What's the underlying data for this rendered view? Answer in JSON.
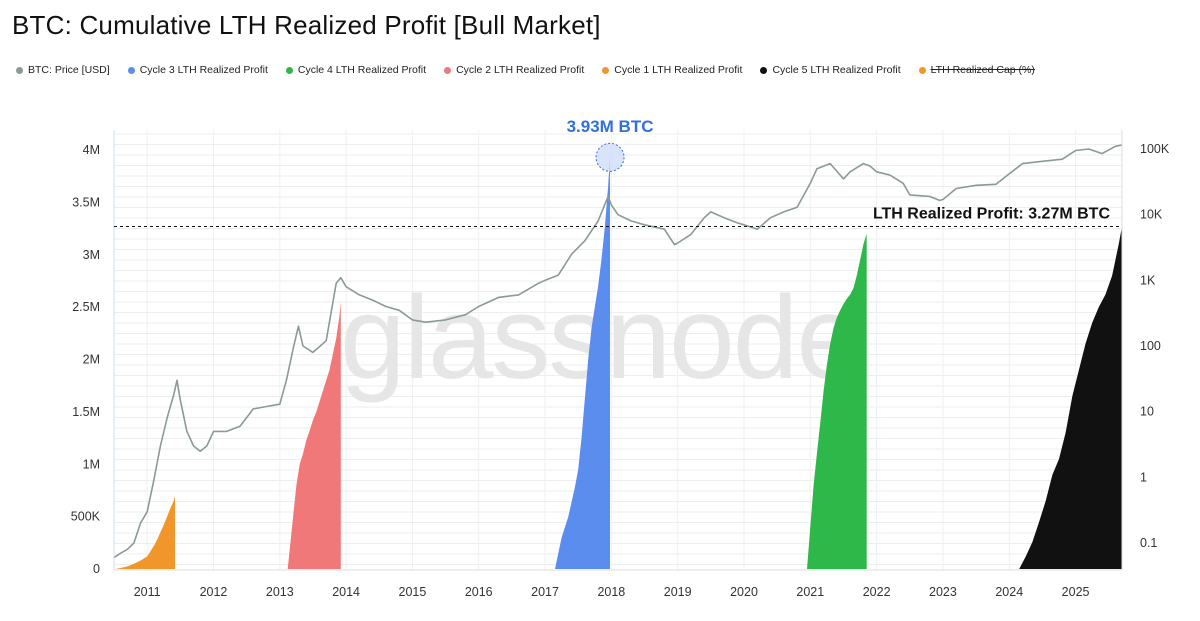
{
  "chart_data": {
    "type": "area",
    "title": "BTC: Cumulative LTH Realized Profit [Bull Market]",
    "watermark": "glassnode",
    "legend": [
      {
        "name": "BTC: Price [USD]",
        "color": "#8a9a94",
        "struck": false
      },
      {
        "name": "Cycle 3 LTH Realized Profit",
        "color": "#5b8def",
        "struck": false
      },
      {
        "name": "Cycle 4 LTH Realized Profit",
        "color": "#2eb84a",
        "struck": false
      },
      {
        "name": "Cycle 2 LTH Realized Profit",
        "color": "#f07878",
        "struck": false
      },
      {
        "name": "Cycle 1 LTH Realized Profit",
        "color": "#f0962a",
        "struck": false
      },
      {
        "name": "Cycle 5 LTH Realized Profit",
        "color": "#111111",
        "struck": false
      },
      {
        "name": "LTH Realized Cap (%)",
        "color": "#f0962a",
        "struck": true
      }
    ],
    "x_ticks": [
      "2011",
      "2012",
      "2013",
      "2014",
      "2015",
      "2016",
      "2017",
      "2018",
      "2019",
      "2020",
      "2021",
      "2022",
      "2023",
      "2024",
      "2025"
    ],
    "x_range": [
      2010.5,
      2025.7
    ],
    "y_left": {
      "ticks": [
        "0",
        "500K",
        "1M",
        "1.5M",
        "2M",
        "2.5M",
        "3M",
        "3.5M",
        "4M"
      ],
      "values": [
        0,
        500000,
        1000000,
        1500000,
        2000000,
        2500000,
        3000000,
        3500000,
        4000000
      ],
      "range": [
        0,
        4000000
      ]
    },
    "y_right": {
      "ticks": [
        "0.1",
        "1",
        "10",
        "100",
        "1K",
        "10K",
        "100K"
      ],
      "values": [
        0.1,
        1,
        10,
        100,
        1000,
        10000,
        100000
      ],
      "log": true,
      "range": [
        0.05,
        200000
      ]
    },
    "series": [
      {
        "name": "Cycle 1 LTH Realized Profit",
        "color": "#f0962a",
        "x": [
          2010.52,
          2010.6,
          2010.7,
          2010.8,
          2010.9,
          2011.0,
          2011.05,
          2011.1,
          2011.15,
          2011.2,
          2011.25,
          2011.3,
          2011.35,
          2011.4,
          2011.42
        ],
        "y": [
          0,
          10000,
          25000,
          50000,
          80000,
          120000,
          170000,
          220000,
          280000,
          350000,
          420000,
          500000,
          580000,
          650000,
          700000
        ]
      },
      {
        "name": "Cycle 2 LTH Realized Profit",
        "color": "#f07878",
        "x": [
          2013.12,
          2013.2,
          2013.25,
          2013.3,
          2013.35,
          2013.4,
          2013.45,
          2013.5,
          2013.55,
          2013.6,
          2013.65,
          2013.7,
          2013.75,
          2013.8,
          2013.85,
          2013.9,
          2013.92
        ],
        "y": [
          0,
          500000,
          800000,
          1000000,
          1100000,
          1230000,
          1320000,
          1420000,
          1500000,
          1600000,
          1700000,
          1800000,
          1900000,
          2050000,
          2200000,
          2420000,
          2550000
        ]
      },
      {
        "name": "Cycle 3 LTH Realized Profit",
        "color": "#5b8def",
        "x": [
          2017.15,
          2017.25,
          2017.35,
          2017.45,
          2017.5,
          2017.55,
          2017.6,
          2017.65,
          2017.7,
          2017.75,
          2017.8,
          2017.85,
          2017.9,
          2017.95,
          2017.98
        ],
        "y": [
          0,
          300000,
          500000,
          780000,
          950000,
          1250000,
          1620000,
          2000000,
          2300000,
          2500000,
          2700000,
          2950000,
          3250000,
          3650000,
          3930000
        ]
      },
      {
        "name": "Cycle 4 LTH Realized Profit",
        "color": "#2eb84a",
        "x": [
          2020.95,
          2021.0,
          2021.05,
          2021.1,
          2021.15,
          2021.2,
          2021.25,
          2021.3,
          2021.35,
          2021.4,
          2021.45,
          2021.5,
          2021.55,
          2021.6,
          2021.65,
          2021.7,
          2021.75,
          2021.8,
          2021.85
        ],
        "y": [
          0,
          400000,
          800000,
          1100000,
          1400000,
          1700000,
          1950000,
          2150000,
          2300000,
          2400000,
          2470000,
          2530000,
          2580000,
          2620000,
          2680000,
          2800000,
          2950000,
          3100000,
          3200000
        ]
      },
      {
        "name": "Cycle 5 LTH Realized Profit",
        "color": "#111111",
        "x": [
          2024.15,
          2024.25,
          2024.35,
          2024.45,
          2024.55,
          2024.65,
          2024.75,
          2024.85,
          2024.95,
          2025.05,
          2025.15,
          2025.25,
          2025.35,
          2025.45,
          2025.55,
          2025.65,
          2025.7
        ],
        "y": [
          0,
          120000,
          260000,
          450000,
          650000,
          900000,
          1050000,
          1300000,
          1650000,
          1900000,
          2150000,
          2350000,
          2500000,
          2620000,
          2800000,
          3100000,
          3270000
        ]
      },
      {
        "name": "BTC: Price [USD]",
        "color": "#8a9a94",
        "axis": "right-log",
        "x": [
          2010.5,
          2010.6,
          2010.7,
          2010.8,
          2010.9,
          2011.0,
          2011.1,
          2011.2,
          2011.3,
          2011.4,
          2011.45,
          2011.5,
          2011.6,
          2011.7,
          2011.8,
          2011.9,
          2012.0,
          2012.2,
          2012.4,
          2012.6,
          2012.8,
          2013.0,
          2013.1,
          2013.2,
          2013.28,
          2013.35,
          2013.5,
          2013.7,
          2013.85,
          2013.92,
          2014.0,
          2014.2,
          2014.4,
          2014.6,
          2014.8,
          2015.0,
          2015.2,
          2015.5,
          2015.8,
          2016.0,
          2016.3,
          2016.6,
          2016.9,
          2017.0,
          2017.2,
          2017.4,
          2017.6,
          2017.8,
          2017.95,
          2018.0,
          2018.1,
          2018.3,
          2018.5,
          2018.8,
          2018.95,
          2019.0,
          2019.2,
          2019.4,
          2019.5,
          2019.7,
          2019.9,
          2020.0,
          2020.2,
          2020.4,
          2020.6,
          2020.8,
          2021.0,
          2021.1,
          2021.3,
          2021.5,
          2021.6,
          2021.8,
          2021.9,
          2022.0,
          2022.2,
          2022.4,
          2022.5,
          2022.8,
          2022.95,
          2023.0,
          2023.2,
          2023.5,
          2023.8,
          2024.0,
          2024.2,
          2024.5,
          2024.8,
          2025.0,
          2025.2,
          2025.4,
          2025.6,
          2025.7
        ],
        "y": [
          0.06,
          0.07,
          0.08,
          0.1,
          0.2,
          0.3,
          0.9,
          3,
          8,
          18,
          30,
          15,
          5,
          3,
          2.5,
          3,
          5,
          5,
          6,
          11,
          12,
          13,
          30,
          90,
          200,
          100,
          80,
          120,
          900,
          1100,
          800,
          600,
          500,
          400,
          350,
          250,
          230,
          250,
          300,
          400,
          550,
          600,
          900,
          1000,
          1200,
          2500,
          4000,
          8000,
          19000,
          14000,
          10000,
          8000,
          7000,
          6000,
          3500,
          3700,
          5000,
          9000,
          11000,
          9000,
          7500,
          7000,
          6000,
          9000,
          11000,
          13000,
          30000,
          50000,
          60000,
          35000,
          45000,
          60000,
          55000,
          45000,
          40000,
          30000,
          20000,
          19000,
          16500,
          17000,
          25000,
          28000,
          29000,
          42000,
          60000,
          65000,
          70000,
          95000,
          100000,
          85000,
          110000,
          115000
        ]
      }
    ],
    "annotations": {
      "peak_label": "3.93M BTC",
      "line_label": "LTH Realized Profit: 3.27M BTC",
      "line_value": 3270000,
      "peak": {
        "x": 2017.98,
        "y": 3930000
      }
    }
  }
}
